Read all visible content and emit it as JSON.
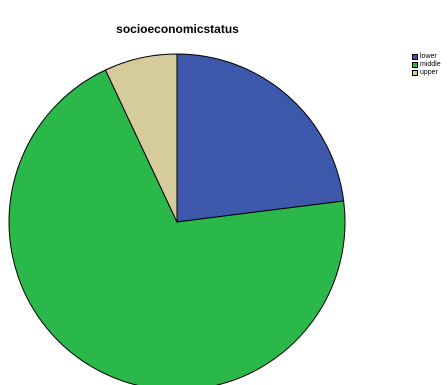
{
  "chart_data": {
    "type": "pie",
    "title": "socioeconomicstatus",
    "categories": [
      "lower",
      "middle",
      "upper"
    ],
    "values": [
      23,
      70,
      7
    ],
    "colors": [
      "#3d57ab",
      "#2bb84a",
      "#d6cc9b"
    ],
    "legend_position": "top-right"
  }
}
